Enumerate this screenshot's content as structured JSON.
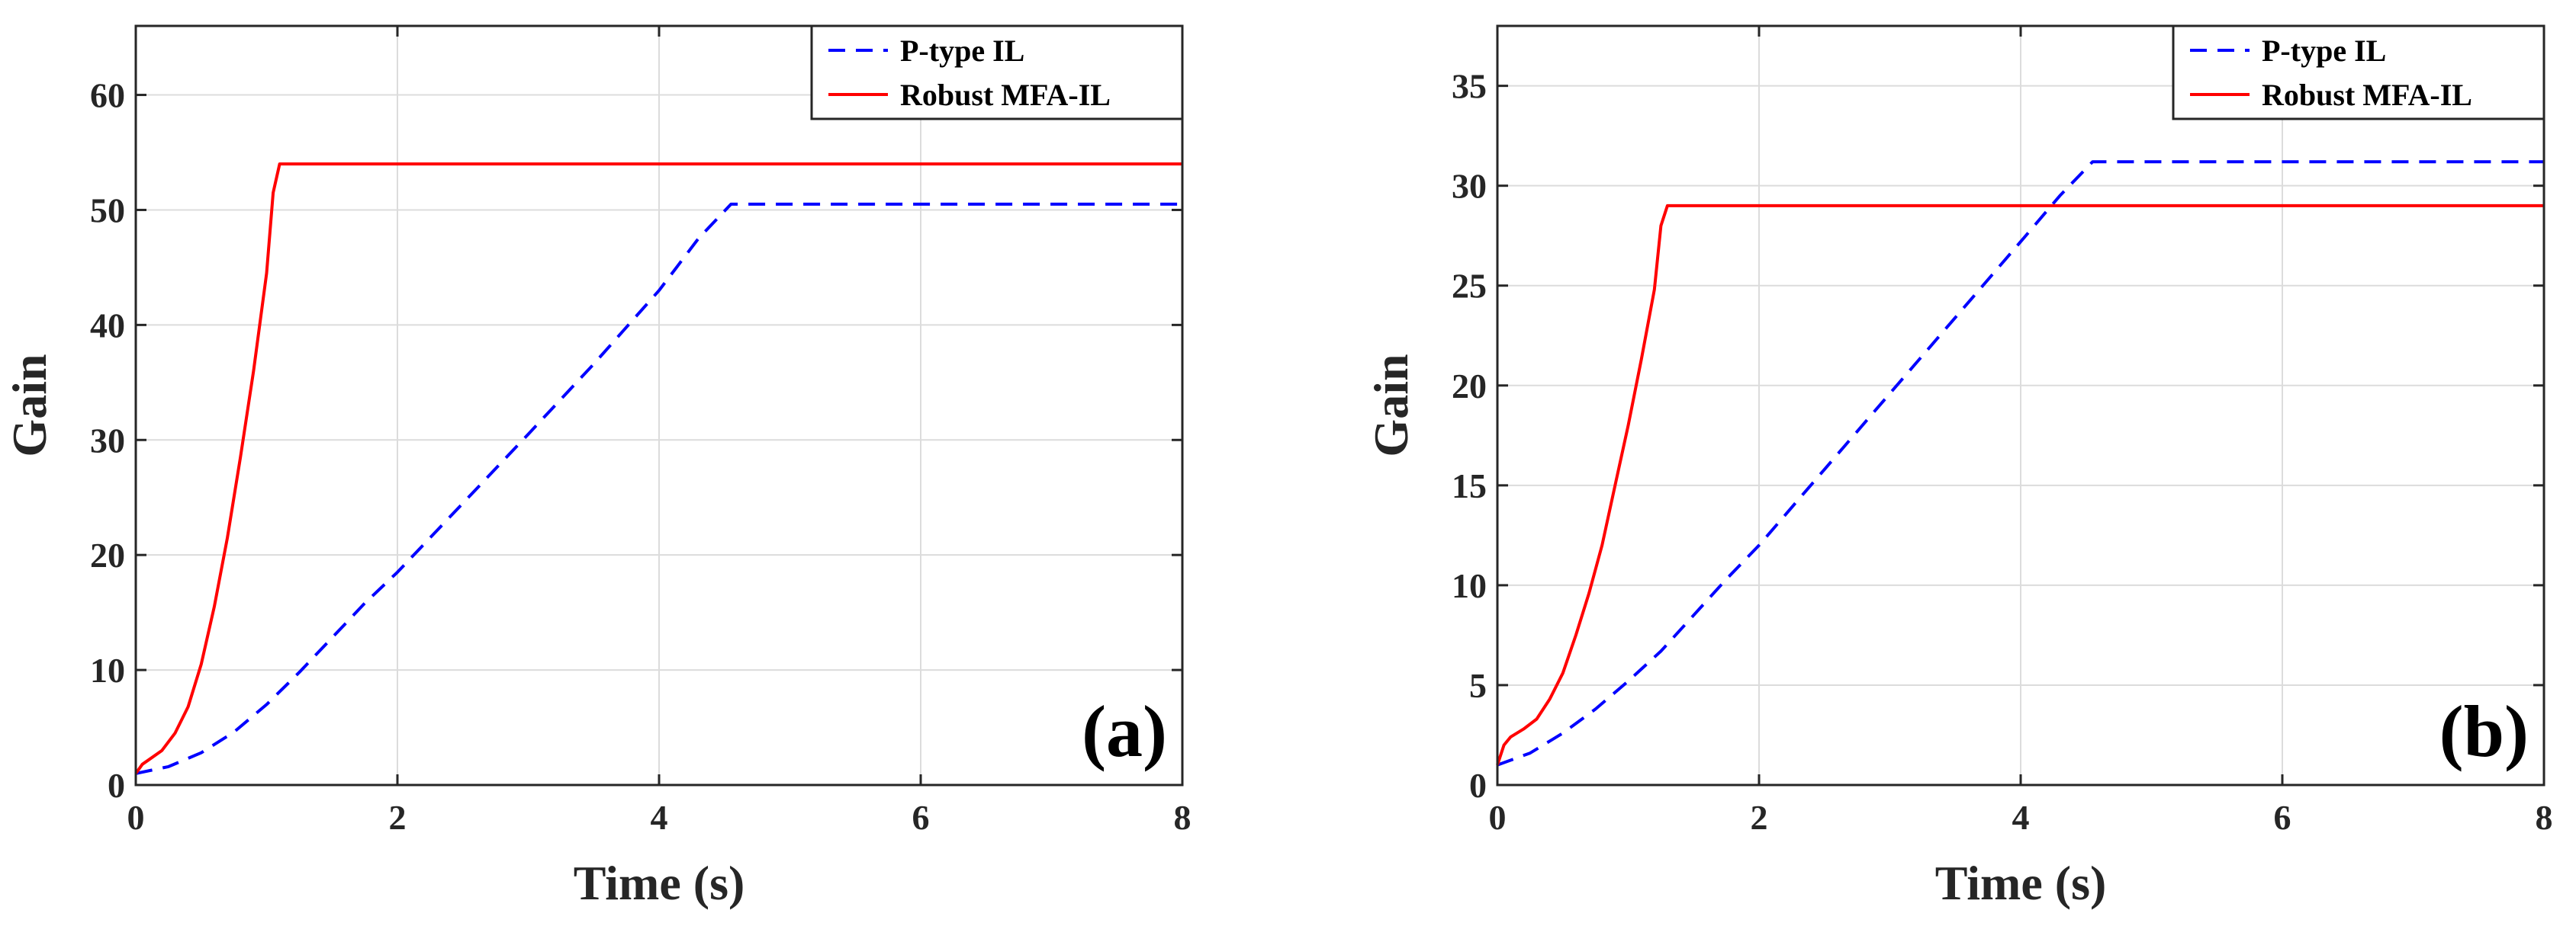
{
  "chart_data": [
    {
      "type": "line",
      "panel_label": "(a)",
      "xlabel": "Time (s)",
      "ylabel": "Gain",
      "xlim": [
        0,
        8
      ],
      "ylim": [
        0,
        66
      ],
      "xticks": [
        0,
        2,
        4,
        6,
        8
      ],
      "yticks": [
        0,
        10,
        20,
        30,
        40,
        50,
        60
      ],
      "grid": true,
      "legend_position": "top-right",
      "series": [
        {
          "name": "P-type IL",
          "color": "#0000ff",
          "style": "dashed",
          "x": [
            0,
            0.25,
            0.5,
            0.75,
            1.0,
            1.25,
            1.5,
            1.75,
            2.0,
            2.5,
            3.0,
            3.5,
            4.0,
            4.3,
            4.55,
            5.0,
            6.0,
            7.0,
            8.0
          ],
          "y": [
            1,
            1.6,
            2.8,
            4.6,
            7.0,
            9.8,
            12.8,
            15.8,
            18.5,
            24.5,
            30.5,
            36.6,
            43.0,
            47.5,
            50.5,
            50.5,
            50.5,
            50.5,
            50.5
          ]
        },
        {
          "name": "Robust MFA-IL",
          "color": "#ff0000",
          "style": "solid",
          "x": [
            0,
            0.05,
            0.1,
            0.2,
            0.3,
            0.4,
            0.5,
            0.6,
            0.7,
            0.8,
            0.9,
            1.0,
            1.05,
            1.1,
            2.0,
            3.0,
            4.0,
            5.0,
            6.0,
            7.0,
            8.0
          ],
          "y": [
            1,
            1.8,
            2.2,
            3.0,
            4.5,
            6.8,
            10.5,
            15.5,
            21.5,
            28.5,
            36,
            44.5,
            51.5,
            54,
            54,
            54,
            54,
            54,
            54,
            54,
            54
          ]
        }
      ]
    },
    {
      "type": "line",
      "panel_label": "(b)",
      "xlabel": "Time (s)",
      "ylabel": "Gain",
      "xlim": [
        0,
        8
      ],
      "ylim": [
        0,
        38
      ],
      "xticks": [
        0,
        2,
        4,
        6,
        8
      ],
      "yticks": [
        0,
        5,
        10,
        15,
        20,
        25,
        30,
        35
      ],
      "grid": true,
      "legend_position": "top-right",
      "series": [
        {
          "name": "P-type IL",
          "color": "#0000ff",
          "style": "dashed",
          "x": [
            0,
            0.25,
            0.5,
            0.75,
            1.0,
            1.25,
            1.5,
            1.75,
            2.0,
            2.5,
            3.0,
            3.5,
            4.0,
            4.3,
            4.55,
            5.0,
            6.0,
            7.0,
            8.0
          ],
          "y": [
            1,
            1.6,
            2.6,
            3.8,
            5.2,
            6.7,
            8.5,
            10.3,
            12.0,
            15.8,
            19.6,
            23.4,
            27.2,
            29.5,
            31.2,
            31.2,
            31.2,
            31.2,
            31.2
          ]
        },
        {
          "name": "Robust MFA-IL",
          "color": "#ff0000",
          "style": "solid",
          "x": [
            0,
            0.05,
            0.1,
            0.2,
            0.3,
            0.4,
            0.5,
            0.6,
            0.7,
            0.8,
            0.9,
            1.0,
            1.1,
            1.2,
            1.25,
            1.3,
            2.0,
            3.0,
            4.0,
            5.0,
            6.0,
            7.0,
            8.0
          ],
          "y": [
            1,
            2.0,
            2.4,
            2.8,
            3.3,
            4.3,
            5.6,
            7.5,
            9.6,
            12.0,
            15.0,
            18.0,
            21.3,
            24.8,
            28.0,
            29,
            29,
            29,
            29,
            29,
            29,
            29,
            29
          ]
        }
      ]
    }
  ]
}
